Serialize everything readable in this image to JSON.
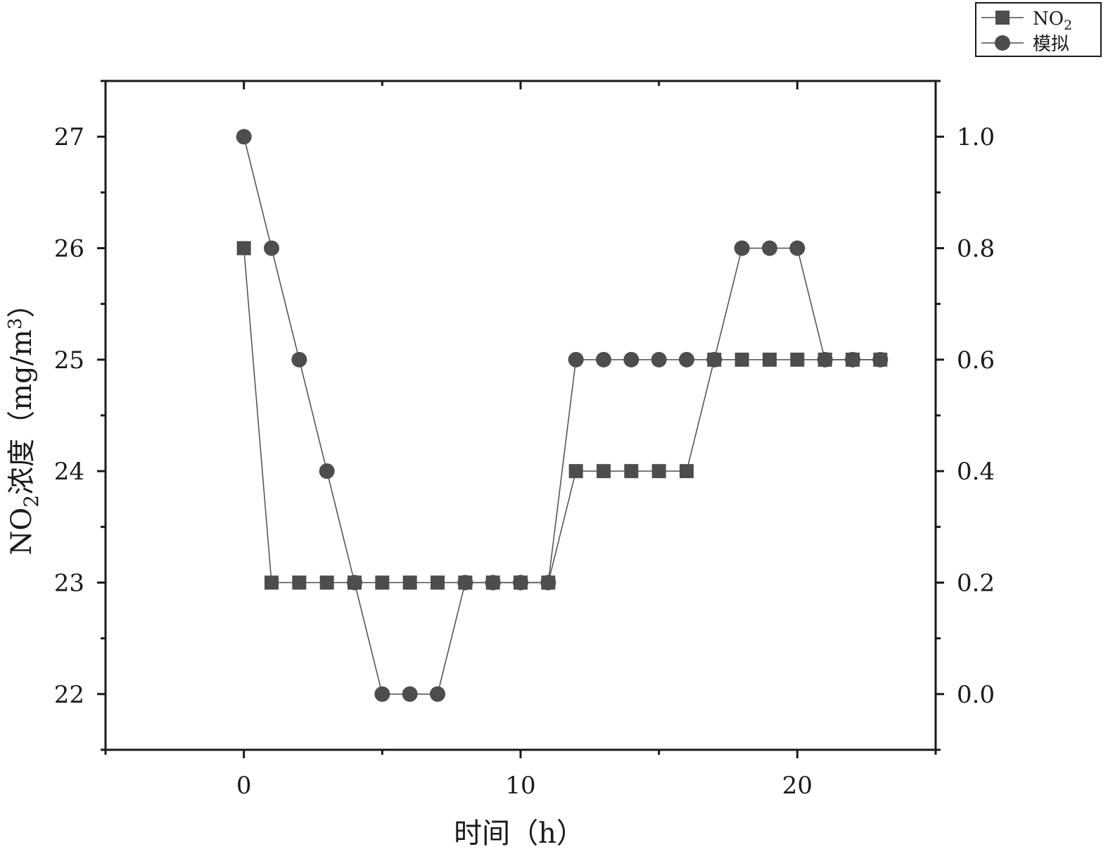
{
  "chart_data": {
    "type": "line",
    "xlabel": "时间（h）",
    "ylabel_left": {
      "main": "NO",
      "sub": "2",
      "rest": "浓度（mg/m",
      "sup": "3",
      "close": "）"
    },
    "ylabel_right": "",
    "xlim": [
      -5,
      25
    ],
    "ylim_left": [
      21.5,
      27.5
    ],
    "ylim_right": [
      -0.1,
      1.1
    ],
    "x_ticks": [
      0,
      10,
      20
    ],
    "y_ticks_left": [
      22,
      23,
      24,
      25,
      26,
      27
    ],
    "y_ticks_right": [
      "0.0",
      "0.2",
      "0.4",
      "0.6",
      "0.8",
      "1.0"
    ],
    "grid": false,
    "legend_position": "top-right",
    "series": [
      {
        "name": "NO",
        "name_sub": "2",
        "marker": "square",
        "axis": "left",
        "color": "#4d4d4d",
        "x": [
          0,
          1,
          2,
          3,
          4,
          5,
          6,
          7,
          8,
          9,
          10,
          11,
          12,
          13,
          14,
          15,
          16,
          17,
          18,
          19,
          20,
          21,
          22,
          23
        ],
        "values": [
          26,
          23,
          23,
          23,
          23,
          23,
          23,
          23,
          23,
          23,
          23,
          23,
          24,
          24,
          24,
          24,
          24,
          25,
          25,
          25,
          25,
          25,
          25,
          25
        ]
      },
      {
        "name": "模拟",
        "marker": "circle",
        "axis": "right",
        "color": "#4d4d4d",
        "x": [
          0,
          1,
          2,
          3,
          4,
          5,
          6,
          7,
          8,
          9,
          10,
          11,
          12,
          13,
          14,
          15,
          16,
          17,
          18,
          19,
          20,
          21,
          22,
          23
        ],
        "values": [
          1.0,
          0.8,
          0.6,
          0.4,
          0.2,
          0.0,
          0.0,
          0.0,
          0.2,
          0.2,
          0.2,
          0.2,
          0.6,
          0.6,
          0.6,
          0.6,
          0.6,
          0.6,
          0.8,
          0.8,
          0.8,
          0.6,
          0.6,
          0.6
        ]
      }
    ]
  }
}
